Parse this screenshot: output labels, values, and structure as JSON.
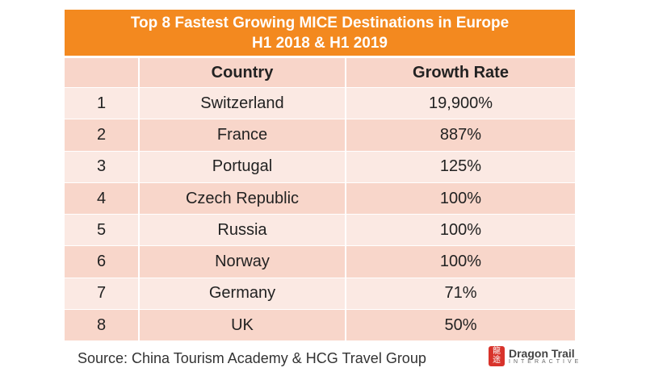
{
  "title": {
    "line1": "Top 8 Fastest Growing MICE Destinations in Europe",
    "line2": "H1 2018 & H1 2019"
  },
  "headers": {
    "rank": "",
    "country": "Country",
    "growth": "Growth Rate"
  },
  "rows": [
    {
      "rank": "1",
      "country": "Switzerland",
      "growth": "19,900%"
    },
    {
      "rank": "2",
      "country": "France",
      "growth": "887%"
    },
    {
      "rank": "3",
      "country": "Portugal",
      "growth": "125%"
    },
    {
      "rank": "4",
      "country": "Czech Republic",
      "growth": "100%"
    },
    {
      "rank": "5",
      "country": "Russia",
      "growth": "100%"
    },
    {
      "rank": "6",
      "country": "Norway",
      "growth": "100%"
    },
    {
      "rank": "7",
      "country": "Germany",
      "growth": "71%"
    },
    {
      "rank": "8",
      "country": "UK",
      "growth": "50%"
    }
  ],
  "source": "Source: China Tourism Academy & HCG Travel Group",
  "logo": {
    "mark": "龍途",
    "name": "Dragon Trail",
    "sub": "INTERACTIVE"
  },
  "colors": {
    "header": "#f3891f",
    "row_light": "#fbe9e3",
    "row_dark": "#f8d6ca"
  }
}
